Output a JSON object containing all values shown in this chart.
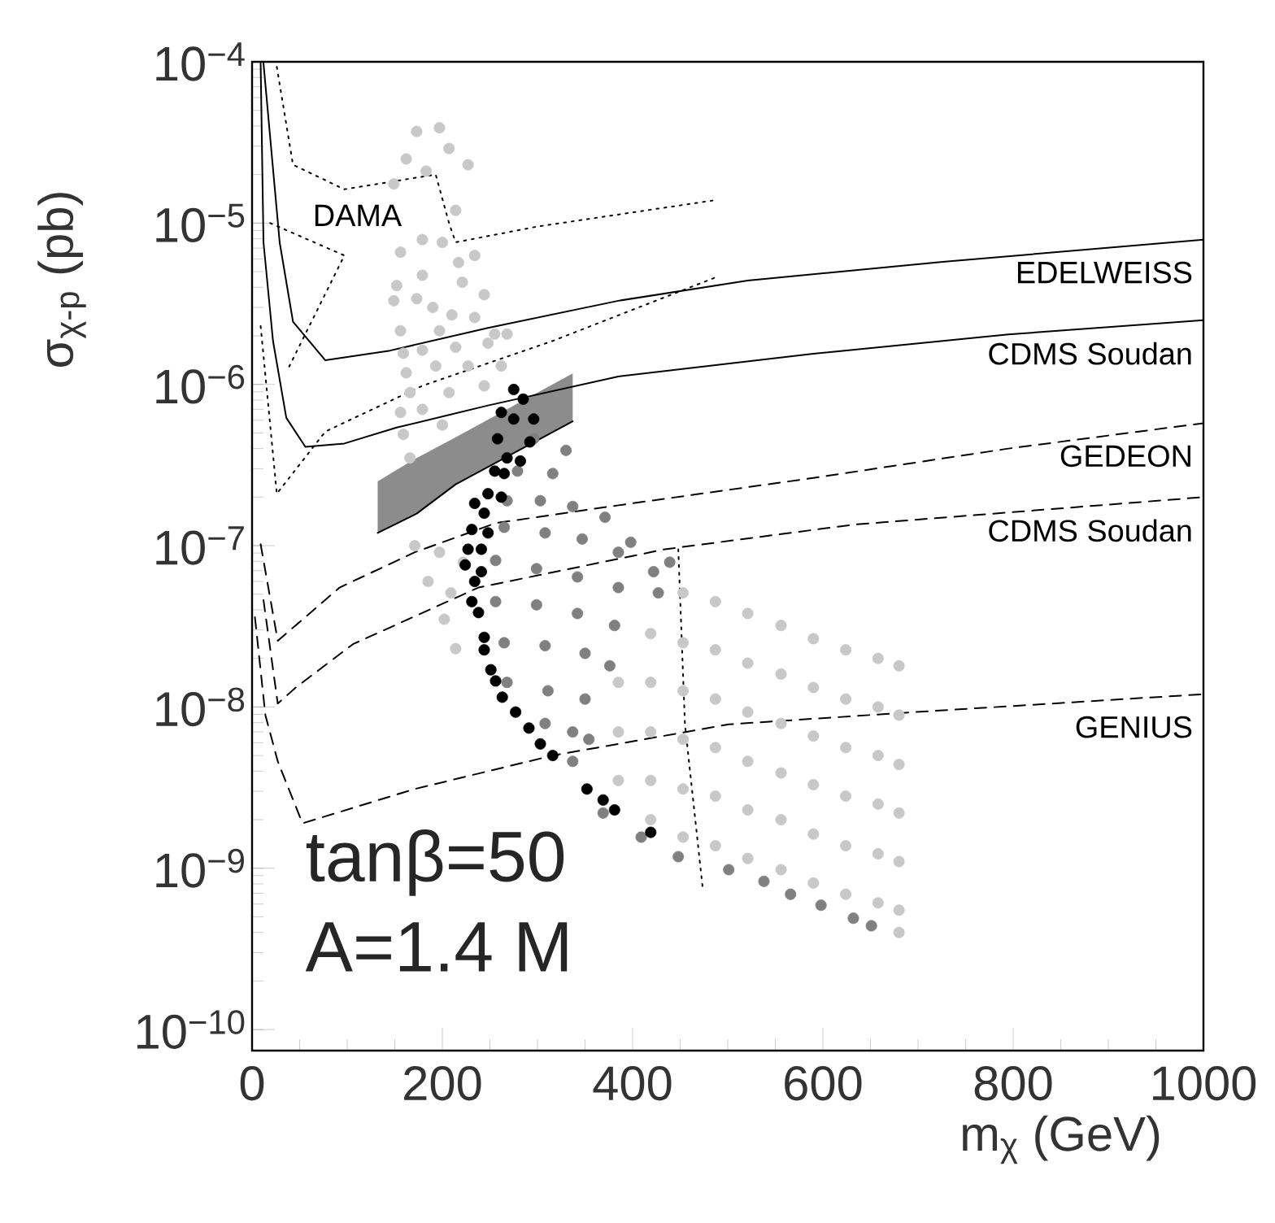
{
  "chart_data": {
    "type": "scatter",
    "xlabel": "m$_{χ}$ (GeV)",
    "ylabel": "σ$_{χ-p}$ (pb)",
    "log": "y",
    "xlim": [
      0,
      1000
    ],
    "ylim": [
      7.4e-11,
      0.0001
    ],
    "xticks": [
      0,
      200,
      400,
      600,
      800,
      1000
    ],
    "yticks": [
      {
        "value": 1e-10,
        "label": "10$^{−10}$"
      },
      {
        "value": 1e-09,
        "label": "10$^{−9}$"
      },
      {
        "value": 1e-08,
        "label": "10$^{−8}$"
      },
      {
        "value": 1e-07,
        "label": "10$^{−7}$"
      },
      {
        "value": 1e-06,
        "label": "10$^{−6}$"
      },
      {
        "value": 1e-05,
        "label": "10$^{−5}$"
      },
      {
        "value": 0.0001,
        "label": "10$^{−4}$"
      }
    ],
    "series": [
      {
        "marker": "circle",
        "color": "#c8c8c8",
        "x": [
          173,
          197,
          207,
          162,
          227,
          183,
          149,
          214,
          179,
          156,
          200,
          234,
          217,
          152,
          179,
          221,
          244,
          149,
          173,
          190,
          210,
          234,
          156,
          197,
          255,
          268,
          159,
          179,
          214,
          248,
          262,
          162,
          193,
          227,
          166,
          207,
          244,
          156,
          179,
          159,
          200,
          166,
          171,
          197,
          185,
          209,
          202,
          214,
          222,
          385,
          385,
          385,
          419,
          419,
          419,
          419,
          419,
          453,
          453,
          453,
          453,
          453,
          453,
          487,
          487,
          487,
          487,
          487,
          487,
          521,
          521,
          521,
          521,
          521,
          521,
          556,
          556,
          556,
          556,
          556,
          556,
          590,
          590,
          590,
          590,
          590,
          590,
          624,
          624,
          624,
          624,
          624,
          624,
          658,
          658,
          658,
          658,
          658,
          658,
          680,
          680,
          680,
          680,
          680,
          680,
          680
        ],
        "values": [
          3.7e-05,
          3.9e-05,
          2.9e-05,
          2.5e-05,
          2.3e-05,
          2.1e-05,
          1.75e-05,
          1.2e-05,
          7.9e-06,
          6.6e-06,
          7.6e-06,
          6.3e-06,
          5.7e-06,
          4.1e-06,
          4.75e-06,
          4.3e-06,
          3.6e-06,
          3.3e-06,
          3.4e-06,
          3e-06,
          2.7e-06,
          2.6e-06,
          2.15e-06,
          2.15e-06,
          2.05e-06,
          2.05e-06,
          1.56e-06,
          1.63e-06,
          1.7e-06,
          1.8e-06,
          1.3e-06,
          1.18e-06,
          1.3e-06,
          1.3e-06,
          8.9e-07,
          8.9e-07,
          9.8e-07,
          6.7e-07,
          7e-07,
          4.9e-07,
          5.6e-07,
          3.5e-07,
          1e-07,
          9.1e-08,
          6e-08,
          5.1e-08,
          3.5e-08,
          2.3e-08,
          7.9e-08,
          1.42e-08,
          7e-09,
          3.5e-09,
          2.85e-08,
          1.42e-08,
          7e-09,
          3.5e-09,
          2e-09,
          5.1e-08,
          2.5e-08,
          1.26e-08,
          6.3e-09,
          3.1e-09,
          1.56e-09,
          4.5e-08,
          2.26e-08,
          1.12e-08,
          5.6e-09,
          2.8e-09,
          1.38e-09,
          3.8e-08,
          1.87e-08,
          9.3e-09,
          4.6e-09,
          2.3e-09,
          1.15e-09,
          3.2e-08,
          1.6e-08,
          7.9e-09,
          3.9e-09,
          2e-09,
          9.8e-10,
          2.65e-08,
          1.32e-08,
          6.6e-09,
          3.3e-09,
          1.63e-09,
          8.1e-10,
          2.26e-08,
          1.12e-08,
          5.6e-09,
          2.8e-09,
          1.38e-09,
          6.9e-10,
          2e-08,
          1e-08,
          5e-09,
          2.5e-09,
          1.23e-09,
          6.1e-10,
          1.8e-08,
          8.9e-09,
          4.4e-09,
          2.2e-09,
          1.1e-09,
          5.5e-10,
          4e-10
        ]
      },
      {
        "marker": "circle",
        "color": "#808080",
        "x": [
          296,
          330,
          279,
          316,
          268,
          303,
          337,
          371,
          398,
          439,
          265,
          308,
          347,
          385,
          422,
          256,
          299,
          342,
          385,
          427,
          256,
          299,
          342,
          381,
          265,
          308,
          350,
          376,
          268,
          311,
          350,
          308,
          337,
          354,
          337,
          369,
          409,
          448,
          501,
          538,
          566,
          598,
          632,
          651
        ],
        "values": [
          4.6e-07,
          3.9e-07,
          2.9e-07,
          2.8e-07,
          1.9e-07,
          1.9e-07,
          1.75e-07,
          1.5e-07,
          1.05e-07,
          7.9e-08,
          1.3e-07,
          1.2e-07,
          1.1e-07,
          9.1e-08,
          6.9e-08,
          8.1e-08,
          7.2e-08,
          6.4e-08,
          5.5e-08,
          5.1e-08,
          4.5e-08,
          4.3e-08,
          3.8e-08,
          3.2e-08,
          2.5e-08,
          2.4e-08,
          2.15e-08,
          1.8e-08,
          1.42e-08,
          1.26e-08,
          1.12e-08,
          7.9e-09,
          7e-09,
          6.3e-09,
          4.6e-09,
          2.2e-09,
          1.56e-09,
          1.18e-09,
          9.8e-10,
          8.3e-10,
          6.9e-10,
          5.9e-10,
          4.9e-10,
          4.4e-10
        ]
      },
      {
        "marker": "circle",
        "color": "#000000",
        "x": [
          275,
          285,
          262,
          275,
          296,
          258,
          292,
          268,
          282,
          255,
          265,
          248,
          262,
          234,
          244,
          231,
          248,
          227,
          241,
          224,
          241,
          234,
          231,
          238,
          244,
          244,
          251,
          256,
          263,
          277,
          291,
          303,
          316,
          352,
          369,
          381,
          419
        ],
        "values": [
          9.3e-07,
          8.1e-07,
          6.7e-07,
          6.1e-07,
          6.1e-07,
          4.6e-07,
          4.4e-07,
          3.5e-07,
          3.35e-07,
          2.9e-07,
          2.8e-07,
          2.1e-07,
          2e-07,
          1.83e-07,
          1.59e-07,
          1.26e-07,
          1.2e-07,
          9.5e-08,
          9.5e-08,
          7.6e-08,
          6.9e-08,
          6e-08,
          4.5e-08,
          3.85e-08,
          2.7e-08,
          2.26e-08,
          1.7e-08,
          1.45e-08,
          1.15e-08,
          9.3e-09,
          7.4e-09,
          5.9e-09,
          5e-09,
          3.1e-09,
          2.65e-09,
          2.3e-09,
          1.67e-09
        ]
      },
      {
        "type": "line",
        "line_style": "solid",
        "color": "#000000",
        "x": [
          132,
          173,
          214,
          337
        ],
        "values": [
          1.2e-07,
          1.58e-07,
          2.4e-07,
          5.9e-07
        ],
        "lower": [
          1.2e-07,
          1.58e-07,
          2.4e-07,
          5.9e-07
        ],
        "upper": [
          2.5e-07,
          3.5e-07,
          4.7e-07,
          1.17e-06
        ]
      },
      {
        "type": "line",
        "name": "EDELWEISS",
        "line_style": "solid",
        "color": "#000000",
        "x": [
          12,
          29,
          43,
          77,
          145,
          248,
          385,
          521,
          726,
          1000
        ],
        "values": [
          9.8e-05,
          7.6e-06,
          2.45e-06,
          1.41e-06,
          1.62e-06,
          2.24e-06,
          3.3e-06,
          4.4e-06,
          5.75e-06,
          7.9e-06
        ]
      },
      {
        "type": "line",
        "name": "CDMS Soudan",
        "line_style": "solid",
        "color": "#000000",
        "x": [
          9,
          12,
          22,
          36,
          56,
          97,
          152,
          248,
          385,
          590,
          795,
          1000
        ],
        "values": [
          9.8e-05,
          7.6e-06,
          1.86e-06,
          6.2e-07,
          4.1e-07,
          4.3e-07,
          5.4e-07,
          7.4e-07,
          1.12e-06,
          1.55e-06,
          2.04e-06,
          2.5e-06
        ]
      },
      {
        "type": "line",
        "name": "GEDEON",
        "line_style": "dashed",
        "color": "#000000",
        "x": [
          9,
          27,
          92,
          171,
          256,
          385,
          590,
          795,
          1000
        ],
        "values": [
          1.02e-07,
          2.57e-08,
          5.5e-08,
          9.1e-08,
          1.38e-07,
          1.78e-07,
          2.63e-07,
          4e-07,
          5.75e-07
        ]
      },
      {
        "type": "line",
        "name": "CDMS Soudan",
        "line_style": "dashed",
        "color": "#000000",
        "x": [
          12,
          27,
          46,
          106,
          238,
          434,
          632,
          1000
        ],
        "values": [
          4.6e-08,
          1.05e-08,
          1.32e-08,
          2.45e-08,
          5.5e-08,
          9.5e-08,
          1.35e-07,
          2e-07
        ]
      },
      {
        "type": "line",
        "name": "GENIUS",
        "line_style": "dashed",
        "color": "#000000",
        "x": [
          3,
          14,
          27,
          53,
          171,
          316,
          501,
          697,
          1000
        ],
        "values": [
          3.6e-08,
          8.9e-09,
          4.6e-09,
          1.9e-09,
          3.1e-09,
          5e-09,
          7.8e-09,
          9.3e-09,
          1.2e-08
        ]
      },
      {
        "type": "line",
        "name": "DAMA",
        "line_style": "dotted",
        "color": "#000000",
        "x": [
          26,
          43,
          97,
          193,
          207,
          214,
          299,
          484
        ],
        "values": [
          9.3e-05,
          2.3e-05,
          1.62e-05,
          2e-05,
          1e-05,
          7.6e-06,
          9.5e-06,
          1.38e-05
        ]
      },
      {
        "type": "line",
        "line_style": "dotted",
        "color": "#000000",
        "x": [
          19,
          97,
          39
        ],
        "values": [
          1e-05,
          6.3e-06,
          1.29e-06
        ]
      },
      {
        "type": "line",
        "line_style": "dotted",
        "color": "#000000",
        "x": [
          9,
          26,
          77,
          179,
          316,
          487
        ],
        "values": [
          2.3e-06,
          2.1e-07,
          5.1e-07,
          9.8e-07,
          1.86e-06,
          4.6e-06
        ]
      },
      {
        "type": "line",
        "line_style": "dotted",
        "color": "#000000",
        "x": [
          448,
          455,
          474
        ],
        "values": [
          9.5e-08,
          7.8e-09,
          7.2e-10
        ]
      }
    ],
    "annotations": [
      "tanβ=50",
      "A=1.4 M"
    ]
  }
}
